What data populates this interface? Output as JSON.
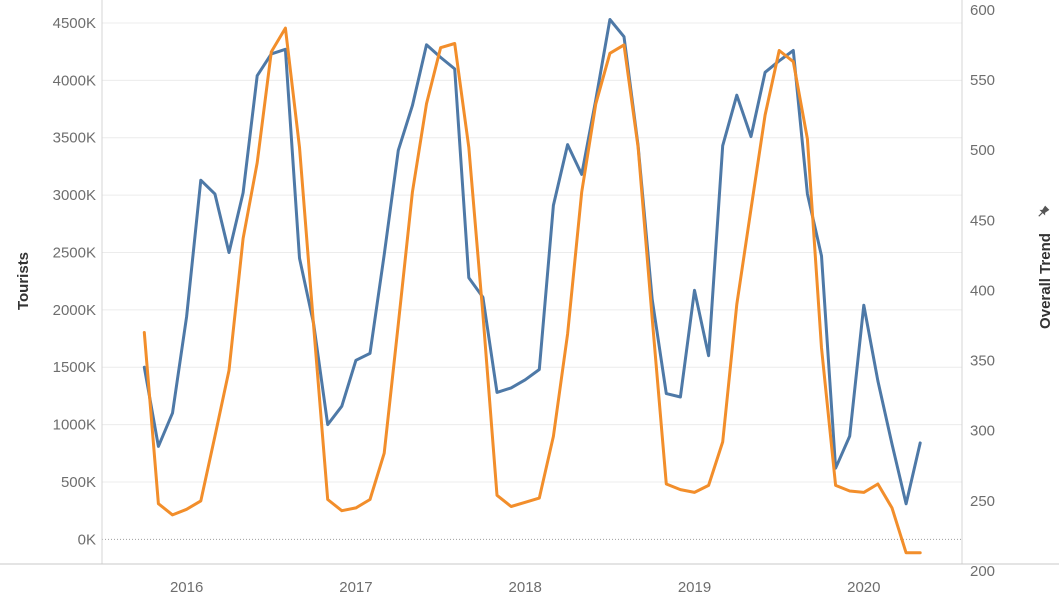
{
  "chart_data": {
    "type": "line",
    "title": "",
    "xlabel": "",
    "ylabel": "Tourists",
    "y2label": "Overall Trend",
    "y2label_icon": "pin-icon",
    "grid": true,
    "legend": "none",
    "x_tick_labels": [
      "2016",
      "2017",
      "2018",
      "2019",
      "2020"
    ],
    "x_range": [
      2015.5,
      2020.58
    ],
    "y_range": [
      -215,
      4700
    ],
    "y_ticks": [
      {
        "value": 0,
        "label": "0K"
      },
      {
        "value": 500,
        "label": "500K"
      },
      {
        "value": 1000,
        "label": "1000K"
      },
      {
        "value": 1500,
        "label": "1500K"
      },
      {
        "value": 2000,
        "label": "2000K"
      },
      {
        "value": 2500,
        "label": "2500K"
      },
      {
        "value": 3000,
        "label": "3000K"
      },
      {
        "value": 3500,
        "label": "3500K"
      },
      {
        "value": 4000,
        "label": "4000K"
      },
      {
        "value": 4500,
        "label": "4500K"
      }
    ],
    "y2_range": [
      205,
      607
    ],
    "y2_ticks": [
      {
        "value": 200,
        "label": "200"
      },
      {
        "value": 250,
        "label": "250"
      },
      {
        "value": 300,
        "label": "300"
      },
      {
        "value": 350,
        "label": "350"
      },
      {
        "value": 400,
        "label": "400"
      },
      {
        "value": 450,
        "label": "450"
      },
      {
        "value": 500,
        "label": "500"
      },
      {
        "value": 550,
        "label": "550"
      },
      {
        "value": 600,
        "label": "600"
      }
    ],
    "x": [
      "2015-10",
      "2015-11",
      "2015-12",
      "2016-01",
      "2016-02",
      "2016-03",
      "2016-04",
      "2016-05",
      "2016-06",
      "2016-07",
      "2016-08",
      "2016-09",
      "2016-10",
      "2016-11",
      "2016-12",
      "2017-01",
      "2017-02",
      "2017-03",
      "2017-04",
      "2017-05",
      "2017-06",
      "2017-07",
      "2017-08",
      "2017-09",
      "2017-10",
      "2017-11",
      "2017-12",
      "2018-01",
      "2018-02",
      "2018-03",
      "2018-04",
      "2018-05",
      "2018-06",
      "2018-07",
      "2018-08",
      "2018-09",
      "2018-10",
      "2018-11",
      "2018-12",
      "2019-01",
      "2019-02",
      "2019-03",
      "2019-04",
      "2019-05",
      "2019-06",
      "2019-07",
      "2019-08",
      "2019-09",
      "2019-10",
      "2019-11",
      "2019-12",
      "2020-01",
      "2020-02",
      "2020-03",
      "2020-04",
      "2020-05"
    ],
    "series": [
      {
        "axis": "left",
        "color": "#4e79a7",
        "values": [
          1500,
          810,
          1100,
          1940,
          3130,
          3010,
          2500,
          3020,
          4040,
          4230,
          4270,
          2450,
          1880,
          1000,
          1160,
          1560,
          1620,
          2480,
          3390,
          3780,
          4310,
          4200,
          4100,
          2280,
          2110,
          1280,
          1320,
          1390,
          1480,
          2910,
          3440,
          3180,
          3830,
          4530,
          4380,
          3430,
          2090,
          1270,
          1240,
          2170,
          1600,
          3430,
          3870,
          3510,
          4070,
          4170,
          4260,
          3010,
          2470,
          620,
          900,
          2040,
          1380,
          830,
          310,
          840
        ]
      },
      {
        "axis": "right",
        "color": "#f28e2b",
        "values": [
          370,
          248,
          240,
          244,
          250,
          296,
          343,
          437,
          491,
          570,
          587,
          502,
          375,
          251,
          243,
          245,
          251,
          284,
          376,
          470,
          533,
          573,
          576,
          502,
          383,
          254,
          246,
          249,
          252,
          296,
          369,
          470,
          533,
          569,
          575,
          502,
          380,
          262,
          258,
          256,
          261,
          292,
          390,
          458,
          525,
          571,
          563,
          508,
          359,
          261,
          257,
          256,
          262,
          245,
          213,
          213
        ]
      }
    ]
  }
}
